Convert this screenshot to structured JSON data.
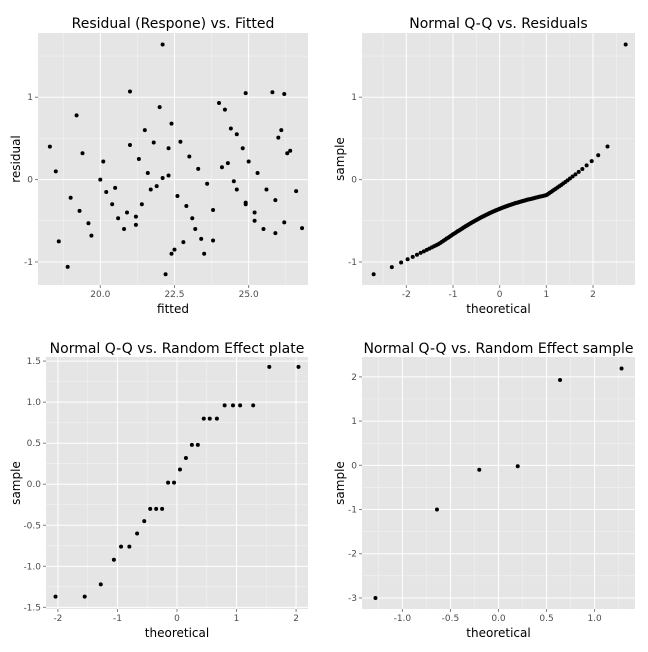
{
  "chart_data": [
    {
      "type": "scatter",
      "title": "Residual (Respone) vs. Fitted",
      "xlabel": "fitted",
      "ylabel": "residual",
      "xlim": [
        17.9,
        27.0
      ],
      "ylim": [
        -1.28,
        1.78
      ],
      "xticks": [
        20.0,
        22.5,
        25.0
      ],
      "xtick_labels": [
        "20.0",
        "22.5",
        "25.0"
      ],
      "yticks": [
        -1,
        0,
        1
      ],
      "ytick_labels": [
        "-1",
        "0",
        "1"
      ],
      "grid": true,
      "x": [
        18.3,
        18.6,
        18.9,
        19.2,
        19.4,
        19.7,
        18.5,
        19.0,
        19.3,
        19.6,
        20.0,
        20.2,
        20.4,
        20.6,
        20.8,
        21.0,
        21.3,
        21.6,
        21.9,
        22.2,
        20.1,
        20.5,
        20.9,
        21.2,
        21.5,
        21.8,
        22.3,
        21.4,
        21.7,
        22.0,
        22.1,
        22.3,
        22.6,
        22.9,
        23.1,
        23.4,
        22.4,
        22.7,
        23.0,
        23.3,
        23.6,
        23.8,
        24.0,
        24.2,
        24.4,
        24.6,
        24.8,
        25.0,
        25.3,
        25.6,
        25.9,
        26.2,
        24.1,
        24.5,
        24.9,
        25.2,
        25.5,
        25.8,
        26.1,
        26.4,
        26.6,
        22.1
      ],
      "y": [
        0.4,
        -0.75,
        -1.06,
        0.78,
        0.32,
        -0.68,
        0.1,
        -0.22,
        -0.38,
        -0.53,
        0.0,
        -0.15,
        -0.3,
        -0.47,
        -0.6,
        0.42,
        0.25,
        0.08,
        -0.08,
        -1.15,
        0.22,
        -0.1,
        -0.4,
        -0.55,
        0.6,
        0.45,
        0.38,
        -0.3,
        -0.12,
        0.88,
        0.02,
        0.05,
        -0.2,
        -0.32,
        -0.47,
        -0.72,
        0.68,
        0.46,
        0.28,
        0.13,
        -0.05,
        -0.37,
        0.93,
        0.85,
        0.62,
        0.55,
        0.38,
        0.22,
        0.08,
        -0.12,
        -0.25,
        -0.52,
        0.15,
        -0.02,
        -0.3,
        -0.4,
        -0.6,
        1.06,
        0.6,
        0.35,
        -0.14,
        1.64
      ],
      "extra_x": [
        21.0,
        24.9,
        26.2,
        26.0,
        26.3,
        25.9,
        26.8,
        24.3,
        24.6,
        24.9,
        25.2,
        22.5,
        23.8,
        23.5,
        22.4,
        22.8,
        23.2,
        21.2
      ],
      "extra_y": [
        1.07,
        1.05,
        1.04,
        0.51,
        0.32,
        -0.65,
        -0.59,
        0.2,
        -0.12,
        -0.28,
        -0.5,
        -0.85,
        -0.74,
        -0.9,
        -0.9,
        -0.76,
        -0.6,
        -0.45
      ]
    },
    {
      "type": "scatter",
      "title": "Normal Q-Q vs. Residuals",
      "xlabel": "theoretical",
      "ylabel": "sample",
      "xlim": [
        -2.95,
        2.9
      ],
      "ylim": [
        -1.28,
        1.78
      ],
      "xticks": [
        -2,
        -1,
        0,
        1,
        2
      ],
      "xtick_labels": [
        "-2",
        "-1",
        "0",
        "1",
        "2"
      ],
      "yticks": [
        -1,
        0,
        1
      ],
      "ytick_labels": [
        "-1",
        "0",
        "1"
      ],
      "grid": true,
      "qq_n": 144,
      "qq_sample_sorted": "derived",
      "qq_endpoints": {
        "low": [
          -2.7,
          -1.15
        ],
        "high": [
          2.7,
          1.64
        ]
      }
    },
    {
      "type": "scatter",
      "title": "Normal Q-Q vs. Random Effect plate",
      "xlabel": "theoretical",
      "ylabel": "sample",
      "xlim": [
        -2.2,
        2.2
      ],
      "ylim": [
        -1.52,
        1.55
      ],
      "xticks": [
        -2,
        -1,
        0,
        1,
        2
      ],
      "xtick_labels": [
        "-2",
        "-1",
        "0",
        "1",
        "2"
      ],
      "yticks": [
        -1.5,
        -1.0,
        -0.5,
        0.0,
        0.5,
        1.0,
        1.5
      ],
      "ytick_labels": [
        "-1.5",
        "-1.0",
        "-0.5",
        "0.0",
        "0.5",
        "1.0",
        "1.5"
      ],
      "grid": true,
      "x": [
        -2.04,
        -1.55,
        -1.28,
        -1.06,
        -0.94,
        -0.8,
        -0.67,
        -0.55,
        -0.45,
        -0.35,
        -0.25,
        -0.15,
        -0.05,
        0.05,
        0.15,
        0.25,
        0.35,
        0.45,
        0.55,
        0.67,
        0.8,
        0.94,
        1.06,
        1.28,
        1.55,
        2.04
      ],
      "y": [
        -1.37,
        -1.37,
        -1.22,
        -0.92,
        -0.76,
        -0.76,
        -0.6,
        -0.45,
        -0.3,
        -0.3,
        -0.3,
        0.02,
        0.02,
        0.18,
        0.32,
        0.48,
        0.48,
        0.8,
        0.8,
        0.8,
        0.96,
        0.96,
        0.96,
        0.96,
        1.43,
        1.43
      ]
    },
    {
      "type": "scatter",
      "title": "Normal Q-Q vs. Random Effect sample",
      "xlabel": "theoretical",
      "ylabel": "sample",
      "xlim": [
        -1.42,
        1.42
      ],
      "ylim": [
        -3.25,
        2.45
      ],
      "xticks": [
        -1.0,
        -0.5,
        0.0,
        0.5,
        1.0
      ],
      "xtick_labels": [
        "-1.0",
        "-0.5",
        "0.0",
        "0.5",
        "1.0"
      ],
      "yticks": [
        -3,
        -2,
        -1,
        0,
        1,
        2
      ],
      "ytick_labels": [
        "-3",
        "-2",
        "-1",
        "0",
        "1",
        "2"
      ],
      "grid": true,
      "x": [
        -1.28,
        -0.64,
        -0.2,
        0.2,
        0.64,
        1.28
      ],
      "y": [
        -3.0,
        -1.0,
        -0.1,
        -0.02,
        1.93,
        2.19
      ]
    }
  ]
}
